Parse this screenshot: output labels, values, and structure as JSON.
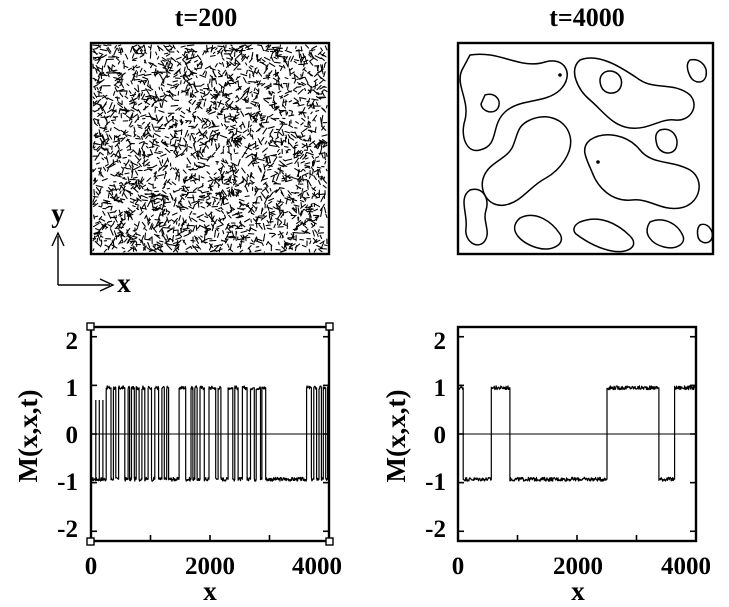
{
  "panels": {
    "snapshot_left_title": "t=200",
    "snapshot_right_title": "t=4000",
    "axis_indicator": {
      "y": "y",
      "x": "x"
    }
  },
  "chart_data": [
    {
      "type": "line",
      "title": "",
      "xlabel": "x",
      "ylabel": "M(x,x,t)",
      "xlim": [
        0,
        4000
      ],
      "ylim": [
        -2.2,
        2.2
      ],
      "xticks": [
        "0",
        "2000",
        "4000"
      ],
      "yticks": [
        "2",
        "1",
        "0",
        "-1",
        "-2"
      ],
      "zero_line": true,
      "baseline_level": -0.93,
      "high_level": 0.95,
      "segments_high": [
        [
          250,
          330
        ],
        [
          370,
          410
        ],
        [
          460,
          560
        ],
        [
          620,
          640
        ],
        [
          680,
          720
        ],
        [
          760,
          800
        ],
        [
          850,
          900
        ],
        [
          960,
          1010
        ],
        [
          1070,
          1130
        ],
        [
          1190,
          1230
        ],
        [
          1270,
          1300
        ],
        [
          1480,
          1590
        ],
        [
          1680,
          1710
        ],
        [
          1740,
          1780
        ],
        [
          1830,
          1900
        ],
        [
          1980,
          2090
        ],
        [
          2130,
          2180
        ],
        [
          2300,
          2380
        ],
        [
          2410,
          2470
        ],
        [
          2540,
          2620
        ],
        [
          2680,
          2740
        ],
        [
          2770,
          2840
        ],
        [
          2870,
          2930
        ],
        [
          3620,
          3700
        ],
        [
          3740,
          3790
        ],
        [
          3830,
          3870
        ],
        [
          3900,
          3940
        ],
        [
          3975,
          4000
        ]
      ],
      "spikes": [
        80,
        140,
        200
      ]
    },
    {
      "type": "line",
      "title": "",
      "xlabel": "x",
      "ylabel": "M(x,x,t)",
      "xlim": [
        0,
        4000
      ],
      "ylim": [
        -2.2,
        2.2
      ],
      "xticks": [
        "0",
        "2000",
        "4000"
      ],
      "yticks": [
        "2",
        "1",
        "0",
        "-1",
        "-2"
      ],
      "zero_line": true,
      "baseline_level": -0.93,
      "high_level": 0.95,
      "segments_high": [
        [
          0,
          80
        ],
        [
          560,
          870
        ],
        [
          2500,
          3370
        ],
        [
          3640,
          4000
        ]
      ],
      "spikes": []
    }
  ]
}
